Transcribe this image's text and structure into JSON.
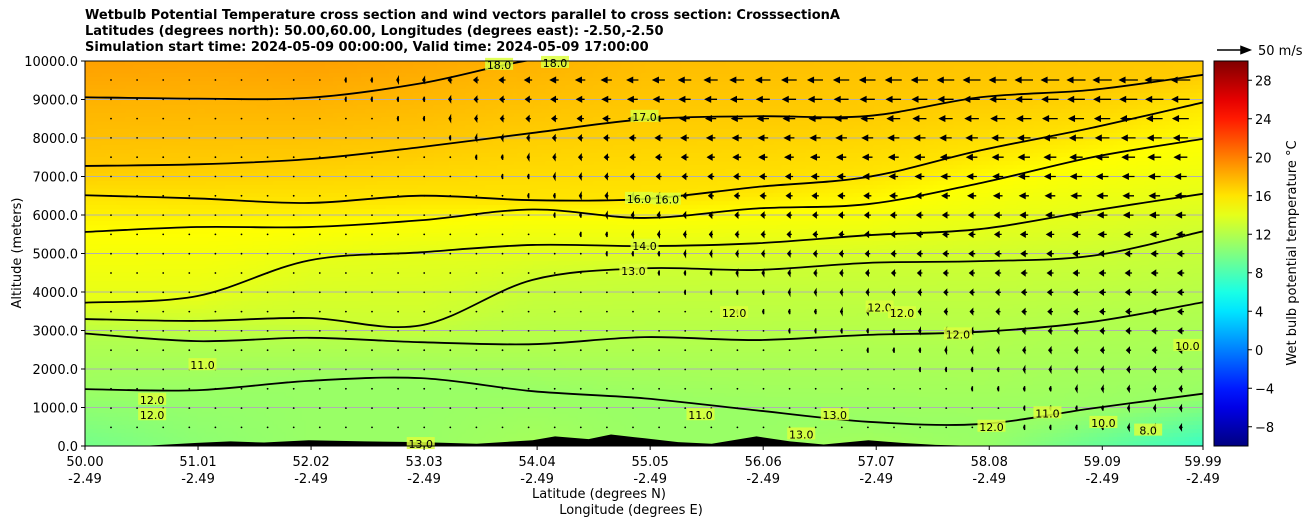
{
  "title_lines": [
    "Wetbulb Potential Temperature cross section and wind vectors parallel to cross section: CrosssectionA",
    "Latitudes (degrees north): 50.00,60.00, Longitudes (degrees east): -2.50,-2.50",
    "Simulation start time: 2024-05-09 00:00:00, Valid time: 2024-05-09 17:00:00"
  ],
  "chart_data": {
    "type": "contour",
    "ylabel": "Altitude (meters)",
    "xlabel": "Latitude (degrees N)",
    "xlabel2": "Longitude (degrees E)",
    "xlim": [
      50.0,
      59.99
    ],
    "ylim": [
      0,
      10000
    ],
    "grid": "horizontal",
    "x_ticks": [
      {
        "lat": "50.00",
        "lon": "-2.49",
        "v": 50.0
      },
      {
        "lat": "51.01",
        "lon": "-2.49",
        "v": 51.01
      },
      {
        "lat": "52.02",
        "lon": "-2.49",
        "v": 52.02
      },
      {
        "lat": "53.03",
        "lon": "-2.49",
        "v": 53.03
      },
      {
        "lat": "54.04",
        "lon": "-2.49",
        "v": 54.04
      },
      {
        "lat": "55.05",
        "lon": "-2.49",
        "v": 55.05
      },
      {
        "lat": "56.06",
        "lon": "-2.49",
        "v": 56.06
      },
      {
        "lat": "57.07",
        "lon": "-2.49",
        "v": 57.07
      },
      {
        "lat": "58.08",
        "lon": "-2.49",
        "v": 58.08
      },
      {
        "lat": "59.09",
        "lon": "-2.49",
        "v": 59.09
      },
      {
        "lat": "59.99",
        "lon": "-2.49",
        "v": 59.99
      }
    ],
    "y_ticks": [
      "0.0",
      "1000.0",
      "2000.0",
      "3000.0",
      "4000.0",
      "5000.0",
      "6000.0",
      "7000.0",
      "8000.0",
      "9000.0",
      "10000.0"
    ],
    "colorbar": {
      "label": "Wet bulb potential temperature $^\\circ$C",
      "label_text": "Wet bulb potential temperature °C",
      "range": [
        -10,
        30
      ],
      "ticks": [
        "28",
        "24",
        "20",
        "16",
        "12",
        "8",
        "4",
        "0",
        "−4",
        "−8"
      ],
      "tick_values": [
        28,
        24,
        20,
        16,
        12,
        8,
        4,
        0,
        -4,
        -8
      ],
      "colormap": "jet"
    },
    "profile_lats": [
      50,
      51,
      52,
      53,
      54,
      55,
      56,
      57,
      58,
      59,
      60
    ],
    "ground_temperature": [
      9.5,
      10.5,
      11,
      11,
      11.5,
      11,
      11,
      11.5,
      11,
      9,
      7
    ],
    "top_temperature": [
      18.7,
      18.6,
      18.7,
      18.4,
      18.0,
      17.6,
      17.5,
      17.4,
      17.3,
      17.2,
      17.1
    ],
    "contours": [
      {
        "level": 11,
        "alt": [
          1400,
          1500,
          1700,
          1700,
          1500,
          1200,
          900,
          700,
          500,
          1000,
          1400
        ]
      },
      {
        "level": 12,
        "alt": [
          2880,
          2800,
          2750,
          2700,
          2700,
          2750,
          2800,
          2900,
          2900,
          3300,
          3700
        ]
      },
      {
        "level": 13,
        "alt": [
          3330,
          3280,
          3250,
          3200,
          4300,
          4570,
          4650,
          4700,
          4800,
          5000,
          5500
        ]
      },
      {
        "level": 14,
        "alt": [
          3800,
          3850,
          4800,
          5100,
          5150,
          5220,
          5300,
          5400,
          5700,
          6100,
          6500
        ]
      },
      {
        "level": 15,
        "alt": [
          5610,
          5610,
          5740,
          5870,
          6080,
          6000,
          6130,
          6260,
          6900,
          7430,
          8000
        ]
      },
      {
        "level": 16,
        "alt": [
          6490,
          6390,
          6390,
          6440,
          6390,
          6470,
          6650,
          7040,
          7690,
          8200,
          9000
        ]
      },
      {
        "level": 17,
        "alt": [
          7200,
          7350,
          7480,
          7690,
          8200,
          8470,
          8520,
          8650,
          9000,
          9250,
          9700
        ]
      },
      {
        "level": 18,
        "alt": [
          9000,
          9100,
          9000,
          9400,
          10100,
          10200,
          10300,
          10400,
          10500,
          10600,
          10700
        ]
      }
    ],
    "contour_labels": [
      {
        "text": "18.0",
        "lat": 53.7,
        "alt": 9900
      },
      {
        "text": "18.0",
        "lat": 54.2,
        "alt": 9950
      },
      {
        "text": "17.0",
        "lat": 55.0,
        "alt": 8550
      },
      {
        "text": "16.0",
        "lat": 54.95,
        "alt": 6420
      },
      {
        "text": "16.0",
        "lat": 55.2,
        "alt": 6400
      },
      {
        "text": "14.0",
        "lat": 55.0,
        "alt": 5200
      },
      {
        "text": "13.0",
        "lat": 54.9,
        "alt": 4550
      },
      {
        "text": "12.0",
        "lat": 55.8,
        "alt": 3450
      },
      {
        "text": "12.0",
        "lat": 57.1,
        "alt": 3600
      },
      {
        "text": "12.0",
        "lat": 57.3,
        "alt": 3450
      },
      {
        "text": "12.0",
        "lat": 57.8,
        "alt": 2900
      },
      {
        "text": "11.0",
        "lat": 51.05,
        "alt": 2100
      },
      {
        "text": "12.0",
        "lat": 50.6,
        "alt": 1200
      },
      {
        "text": "12.0",
        "lat": 50.6,
        "alt": 800
      },
      {
        "text": "13.0",
        "lat": 53.0,
        "alt": 50
      },
      {
        "text": "11.0",
        "lat": 58.6,
        "alt": 850
      },
      {
        "text": "10.0",
        "lat": 59.1,
        "alt": 600
      },
      {
        "text": "12.0",
        "lat": 58.1,
        "alt": 500
      },
      {
        "text": "8.0",
        "lat": 59.5,
        "alt": 400
      },
      {
        "text": "10.0",
        "lat": 59.85,
        "alt": 2600
      },
      {
        "text": "11.0",
        "lat": 55.5,
        "alt": 800
      },
      {
        "text": "13.0",
        "lat": 56.4,
        "alt": 300
      },
      {
        "text": "13.0",
        "lat": 56.7,
        "alt": 800
      }
    ],
    "terrain_lats": [
      50,
      50.5,
      51,
      51.3,
      51.6,
      52,
      52.5,
      53,
      53.5,
      54,
      54.2,
      54.5,
      54.7,
      55,
      55.3,
      55.6,
      56,
      56.3,
      56.6,
      57,
      57.3,
      57.6,
      58,
      58.5,
      59,
      60
    ],
    "terrain_alt": [
      0,
      0,
      80,
      120,
      90,
      150,
      120,
      100,
      60,
      150,
      250,
      180,
      300,
      200,
      100,
      60,
      250,
      120,
      40,
      150,
      80,
      30,
      0,
      0,
      0,
      0
    ],
    "wind": {
      "reference_label": "50 m/s",
      "reference_speed": 50,
      "alts": [
        9500,
        9000,
        8000,
        7000,
        6000,
        5000,
        4000,
        3000,
        2000,
        1000
      ],
      "u": [
        [
          0,
          0,
          -2,
          -4,
          -11,
          -17,
          -21,
          -23,
          -25,
          -27,
          -28
        ],
        [
          0,
          0,
          -2,
          -3,
          -9,
          -15,
          -19,
          -21,
          -23,
          -25,
          -26
        ],
        [
          0,
          0,
          -1,
          -2,
          -5,
          -10,
          -14,
          -16,
          -17,
          -20,
          -21
        ],
        [
          0,
          0,
          0,
          -1,
          -3,
          -7,
          -10,
          -12,
          -14,
          -17,
          -17
        ],
        [
          0,
          0,
          0,
          -1,
          -2,
          -5,
          -7,
          -9,
          -10,
          -14,
          -14
        ],
        [
          0,
          0,
          0,
          0,
          -1,
          -3,
          -5,
          -7,
          -9,
          -10,
          -10
        ],
        [
          0,
          0,
          0,
          0,
          -1,
          -2,
          -3,
          -5,
          -7,
          -9,
          -9
        ],
        [
          0,
          0,
          0,
          0,
          0,
          -1,
          -2,
          -3,
          -5,
          -7,
          -9
        ],
        [
          0,
          0,
          0,
          0,
          0,
          0,
          -1,
          -2,
          -3,
          -5,
          -7
        ],
        [
          0,
          0,
          0,
          0,
          0,
          0,
          0,
          -1,
          -2,
          -3,
          -5
        ]
      ]
    }
  }
}
